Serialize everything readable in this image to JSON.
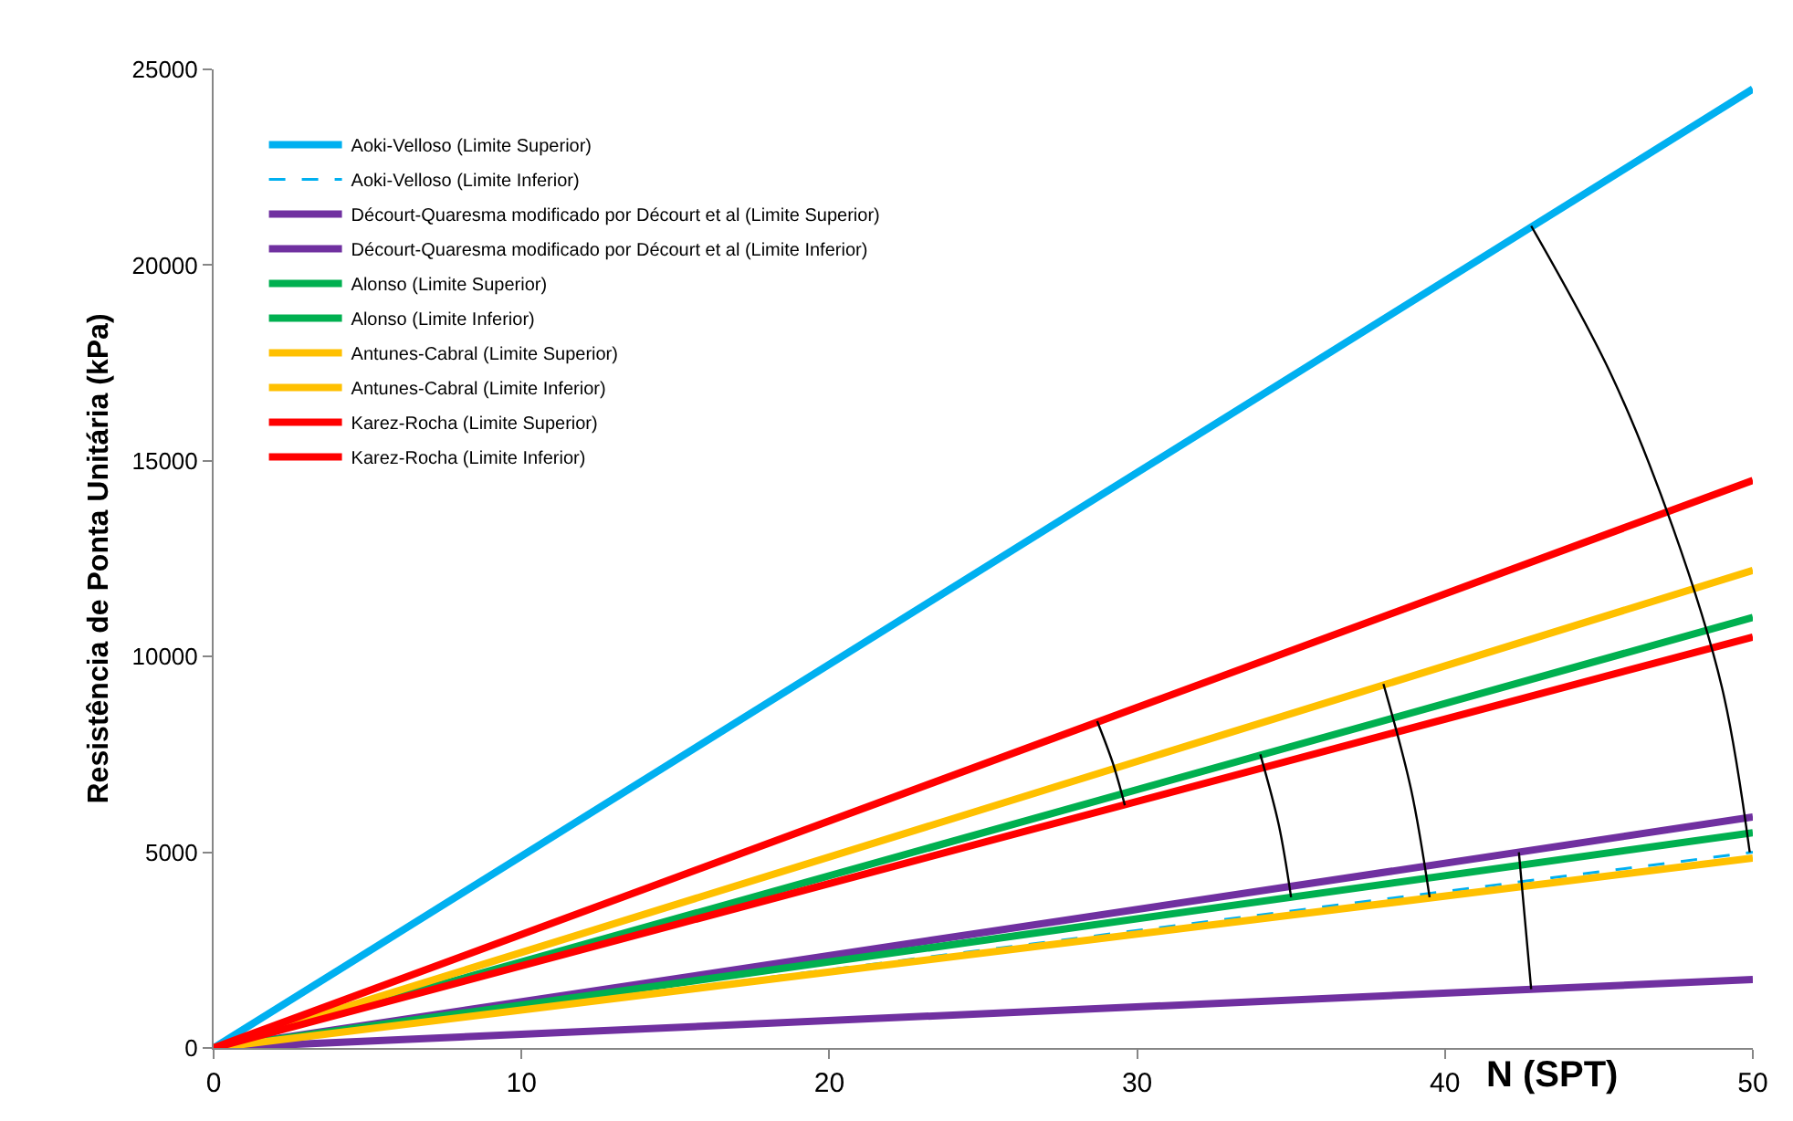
{
  "chart_data": {
    "type": "line",
    "xlabel": "N (SPT)",
    "ylabel": "Resistência de Ponta Unitária (kPa)",
    "x": [
      0,
      50
    ],
    "series": [
      {
        "name": "Aoki-Velloso (Limite Superior)",
        "color": "#00b0f0",
        "values": [
          0,
          24500
        ]
      },
      {
        "name": "Aoki-Velloso (Limite Inferior)",
        "color": "#00b0f0",
        "values": [
          0,
          5000
        ],
        "line_style": "dashed"
      },
      {
        "name": "Décourt-Quaresma modificado por Décourt et al (Limite Superior)",
        "color": "#7030a0",
        "values": [
          0,
          5900
        ]
      },
      {
        "name": "Décourt-Quaresma modificado por Décourt et al (Limite Inferior)",
        "color": "#7030a0",
        "values": [
          0,
          1750
        ]
      },
      {
        "name": "Alonso (Limite Superior)",
        "color": "#00b050",
        "values": [
          0,
          11000
        ]
      },
      {
        "name": "Alonso (Limite Inferior)",
        "color": "#00b050",
        "values": [
          0,
          5500
        ]
      },
      {
        "name": "Antunes-Cabral (Limite Superior)",
        "color": "#ffc000",
        "values": [
          0,
          12200
        ]
      },
      {
        "name": "Antunes-Cabral (Limite Inferior)",
        "color": "#ffc000",
        "values": [
          0,
          4850
        ]
      },
      {
        "name": "Karez-Rocha (Limite Superior)",
        "color": "#ff0000",
        "values": [
          0,
          14500
        ]
      },
      {
        "name": "Karez-Rocha (Limite Inferior)",
        "color": "#ff0000",
        "values": [
          0,
          10500
        ]
      },
      {
        "type": "line",
        "color": "#000000",
        "x": [
          42.8,
          45.4,
          47.4,
          49,
          49.9
        ],
        "values": [
          21000,
          17200,
          13300,
          9200,
          5000
        ]
      },
      {
        "type": "line",
        "color": "#000000",
        "x": [
          42.4,
          42.6,
          42.8
        ],
        "values": [
          5000,
          3250,
          1500
        ]
      },
      {
        "type": "line",
        "color": "#000000",
        "x": [
          34,
          34.6,
          35
        ],
        "values": [
          7500,
          5700,
          3850
        ]
      },
      {
        "type": "line",
        "color": "#000000",
        "x": [
          38,
          38.9,
          39.5
        ],
        "values": [
          9300,
          6600,
          3850
        ]
      },
      {
        "type": "line",
        "color": "#000000",
        "x": [
          28.7,
          29.2,
          29.6
        ],
        "values": [
          8350,
          7300,
          6200
        ]
      }
    ],
    "xlim": [
      0,
      50
    ],
    "xticks": [
      0,
      10,
      20,
      30,
      40,
      50
    ],
    "ylim": [
      0,
      25000
    ],
    "yticks": [
      0,
      5000,
      10000,
      15000,
      20000,
      25000
    ],
    "legend": "top left",
    "marker": "none",
    "line_style": "solid"
  }
}
